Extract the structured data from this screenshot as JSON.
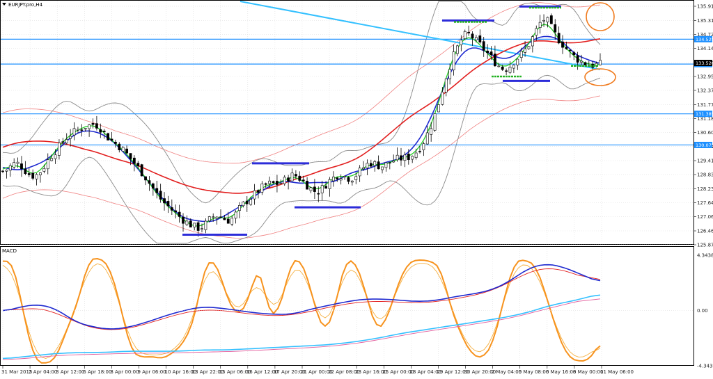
{
  "header": {
    "symbol_label": "EURJPY.pro,H4"
  },
  "sub_panel": {
    "title": "MACD"
  },
  "price_axis": {
    "ticks": [
      "135.910",
      "135.310",
      "134.725",
      "134.140",
      "133.526",
      "132.955",
      "132.370",
      "131.770",
      "131.185",
      "130.600",
      "130.015",
      "129.415",
      "128.830",
      "128.230",
      "127.645",
      "127.060",
      "126.460",
      "125.875"
    ],
    "current_price": "133.526",
    "horizontal_levels": [
      "134.525",
      "133.477",
      "131.385",
      "130.075"
    ]
  },
  "macd_axis": {
    "ticks": [
      "4.3438",
      "0.00",
      "-4.3438"
    ]
  },
  "time_axis": {
    "ticks": [
      "31 Mar 2015",
      "2 Apr 04:00",
      "3 Apr 12:00",
      "6 Apr 18:00",
      "8 Apr 00:00",
      "9 Apr 06:00",
      "10 Apr 16:00",
      "13 Apr 22:00",
      "15 Apr 06:00",
      "16 Apr 12:00",
      "17 Apr 20:00",
      "21 Apr 00:00",
      "22 Apr 08:00",
      "23 Apr 16:00",
      "25 Apr 00:00",
      "28 Apr 04:00",
      "29 Apr 12:00",
      "30 Apr 20:00",
      "2 May 04:00",
      "5 May 08:00",
      "6 May 16:00",
      "8 May 00:00",
      "11 May 06:00"
    ]
  },
  "colors": {
    "grid": "#d9d9d9",
    "hline": "#1e90ff",
    "trendline": "#33c0ff",
    "ma_slow": "#e21f1f",
    "ma_fast_green": "#22cc22",
    "ma_blue": "#1f2ad0",
    "bollinger": "#8a8a8a",
    "envelope": "#f08080",
    "stoch_orange": "#f7931e",
    "circle": "#f07b1e",
    "sr_blue": "#2c2cd9",
    "sr_green": "#22b122"
  },
  "chart_data": [
    {
      "type": "candlestick",
      "title": "EURJPY.pro,H4",
      "ylim": [
        125.875,
        135.91
      ],
      "y_ticks": [
        135.91,
        135.31,
        134.725,
        134.14,
        133.526,
        132.955,
        132.37,
        131.77,
        131.185,
        130.6,
        130.015,
        129.415,
        128.83,
        128.23,
        127.645,
        127.06,
        126.46,
        125.875
      ],
      "current_price": 133.526,
      "levels": [
        134.525,
        133.477,
        131.385,
        130.075
      ],
      "close_path": [
        128.9,
        129.2,
        129.4,
        128.9,
        128.7,
        129.0,
        129.6,
        129.9,
        130.4,
        130.6,
        130.8,
        130.9,
        131.0,
        130.5,
        130.2,
        130.0,
        129.6,
        129.2,
        128.8,
        128.3,
        127.8,
        127.5,
        127.2,
        126.9,
        126.7,
        126.5,
        126.8,
        127.2,
        127.0,
        126.8,
        127.4,
        127.7,
        128.0,
        128.3,
        128.5,
        128.4,
        128.6,
        128.9,
        128.6,
        128.3,
        128.0,
        128.4,
        128.7,
        128.9,
        128.6,
        128.8,
        129.2,
        129.4,
        129.1,
        129.3,
        129.5,
        129.5,
        129.6,
        129.9,
        130.5,
        131.3,
        132.5,
        133.6,
        134.3,
        134.9,
        134.5,
        134.2,
        133.8,
        133.4,
        133.2,
        133.6,
        133.9,
        134.3,
        135.0,
        135.6,
        134.8,
        134.4,
        134.0,
        133.7,
        133.5,
        133.4,
        133.5
      ],
      "support_resistance_blue": [
        135.31,
        132.77,
        129.3,
        126.3,
        127.45,
        135.9
      ],
      "support_resistance_green": [
        135.85,
        135.25,
        132.955,
        133.4
      ]
    },
    {
      "type": "line",
      "title": "MACD",
      "ylim": [
        -4.3438,
        4.3438
      ],
      "y_ticks": [
        4.3438,
        0.0,
        -4.3438
      ],
      "series": [
        {
          "values": [
            3.9,
            3.8,
            -0.5,
            -4.0,
            -4.2,
            -3.8,
            -1.5,
            0.5,
            3.9,
            4.2,
            3.5,
            0.5,
            -3.2,
            -3.7,
            -3.6,
            -3.8,
            -3.3,
            -2.5,
            -0.6,
            3.8,
            3.9,
            1.0,
            -0.5,
            0.7,
            3.9,
            -0.5,
            0.1,
            3.8,
            4.1,
            1.2,
            -1.8,
            -0.4,
            3.8,
            4.0,
            1.5,
            -1.6,
            -0.8,
            2.0,
            3.8,
            4.0,
            3.9,
            3.5,
            0.2,
            -2.0,
            -3.5,
            -3.8,
            -2.5,
            1.0,
            3.9,
            4.0,
            3.5,
            1.0,
            -1.8,
            -3.7,
            -4.0,
            -3.9,
            -2.5
          ]
        },
        {
          "values": [
            -0.1,
            0.3,
            0.5,
            0.1,
            -0.9,
            -1.3,
            -1.5,
            -1.3,
            -0.9,
            -0.4,
            0.0,
            0.3,
            0.2,
            0.0,
            -0.2,
            -0.3,
            -0.3,
            0.1,
            0.4,
            0.7,
            0.9,
            0.9,
            0.8,
            0.7,
            0.8,
            1.1,
            1.3,
            1.6,
            2.3,
            3.3,
            3.7,
            3.4,
            2.8,
            2.2
          ]
        },
        {
          "values": [
            -3.8,
            -3.6,
            -3.4,
            -3.3,
            -3.3,
            -3.2,
            -3.2,
            -3.2,
            -3.1,
            -3.1,
            -3.0,
            -2.9,
            -2.8,
            -2.7,
            -2.5,
            -2.2,
            -1.8,
            -1.5,
            -1.2,
            -0.9,
            -0.6,
            -0.2,
            0.4,
            0.8,
            1.3
          ]
        }
      ]
    }
  ]
}
